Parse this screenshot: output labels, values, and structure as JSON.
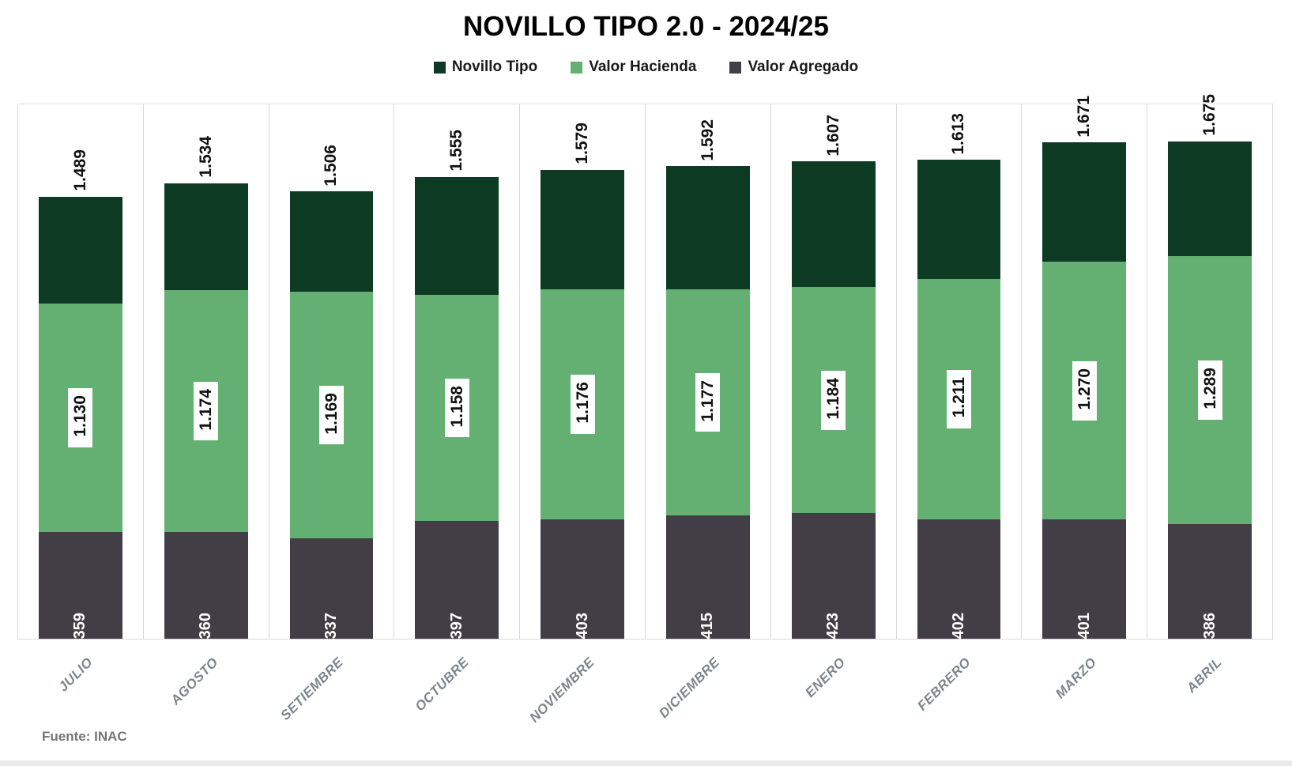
{
  "title": "NOVILLO TIPO 2.0 - 2024/25",
  "source": "Fuente: INAC",
  "colors": {
    "novillo_tipo": "#0c3a23",
    "valor_hacienda": "#64b072",
    "valor_agregado": "#423e46",
    "gridline": "#d9d9d9",
    "axis_label": "#7c858b"
  },
  "legend": [
    {
      "label": "Novillo Tipo",
      "color": "#0c3a23"
    },
    {
      "label": "Valor Hacienda",
      "color": "#64b072"
    },
    {
      "label": "Valor Agregado",
      "color": "#423e46"
    }
  ],
  "chart_data": {
    "type": "bar",
    "subtype": "stacked-cumulative",
    "title": "NOVILLO TIPO 2.0 - 2024/25",
    "xlabel": "",
    "ylabel": "",
    "ylim": [
      0,
      1800
    ],
    "grid": "vertical-band-separators",
    "legend_position": "top",
    "categories": [
      "JULIO",
      "AGOSTO",
      "SETIEMBRE",
      "OCTUBRE",
      "NOVIEMBRE",
      "DICIEMBRE",
      "ENERO",
      "FEBRERO",
      "MARZO",
      "ABRIL"
    ],
    "series": [
      {
        "name": "Valor Agregado",
        "role": "bottom-segment",
        "color": "#423e46",
        "values": [
          359,
          360,
          337,
          397,
          403,
          415,
          423,
          402,
          401,
          386
        ],
        "labels": [
          "359",
          "360",
          "337",
          "397",
          "403",
          "415",
          "423",
          "402",
          "401",
          "386"
        ]
      },
      {
        "name": "Valor Hacienda",
        "role": "cumulative-middle (label = Valor Agregado + middle segment)",
        "color": "#64b072",
        "values": [
          1130,
          1174,
          1169,
          1158,
          1176,
          1177,
          1184,
          1211,
          1270,
          1289
        ],
        "labels": [
          "1.130",
          "1.174",
          "1.169",
          "1.158",
          "1.176",
          "1.177",
          "1.184",
          "1.211",
          "1.270",
          "1.289"
        ]
      },
      {
        "name": "Novillo Tipo",
        "role": "cumulative-total (label = bar total height)",
        "color": "#0c3a23",
        "values": [
          1489,
          1534,
          1506,
          1555,
          1579,
          1592,
          1607,
          1613,
          1671,
          1675
        ],
        "labels": [
          "1.489",
          "1.534",
          "1.506",
          "1.555",
          "1.579",
          "1.592",
          "1.607",
          "1.613",
          "1.671",
          "1.675"
        ]
      }
    ]
  }
}
